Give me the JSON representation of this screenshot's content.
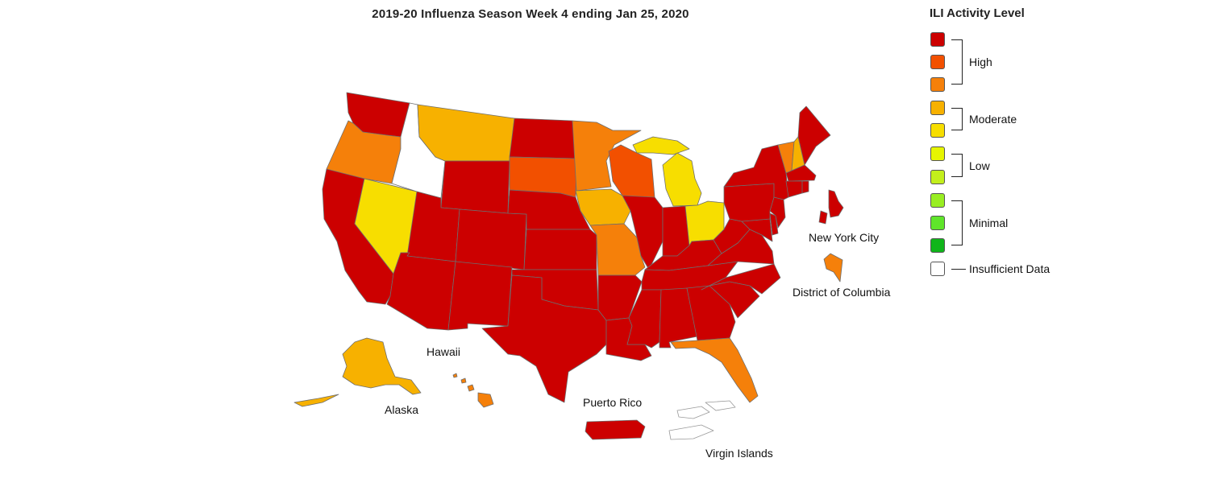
{
  "title": "2019-20 Influenza Season Week 4 ending Jan 25, 2020",
  "colors": {
    "high3": "#cc0000",
    "high2": "#f25000",
    "high1": "#f5800a",
    "moderate2": "#f7b100",
    "moderate1": "#f7de00",
    "low2": "#e6f500",
    "low1": "#c3ef1c",
    "minimal3": "#99ee22",
    "minimal2": "#5fe52a",
    "minimal1": "#10b51a",
    "insufficient": "#ffffff"
  },
  "legend": {
    "title": "ILI Activity Level",
    "groups": [
      {
        "label": "High",
        "levels": [
          "high3",
          "high2",
          "high1"
        ]
      },
      {
        "label": "Moderate",
        "levels": [
          "moderate2",
          "moderate1"
        ]
      },
      {
        "label": "Low",
        "levels": [
          "low2",
          "low1"
        ]
      },
      {
        "label": "Minimal",
        "levels": [
          "minimal3",
          "minimal2",
          "minimal1"
        ]
      },
      {
        "label": "Insufficient Data",
        "levels": [
          "insufficient"
        ]
      }
    ]
  },
  "labels": {
    "new_york_city": "New York City",
    "district_of_columbia": "District of Columbia",
    "hawaii": "Hawaii",
    "alaska": "Alaska",
    "puerto_rico": "Puerto Rico",
    "virgin_islands": "Virgin Islands"
  },
  "jurisdiction_levels": {
    "Washington": "high3",
    "Oregon": "high1",
    "California": "high3",
    "Nevada": "moderate1",
    "Idaho": "insufficient",
    "Montana": "moderate2",
    "Wyoming": "high3",
    "Utah": "high3",
    "Arizona": "high3",
    "Colorado": "high3",
    "New Mexico": "high3",
    "North Dakota": "high3",
    "South Dakota": "high2",
    "Nebraska": "high3",
    "Kansas": "high3",
    "Oklahoma": "high3",
    "Texas": "high3",
    "Minnesota": "high1",
    "Iowa": "moderate2",
    "Missouri": "high1",
    "Arkansas": "high3",
    "Louisiana": "high3",
    "Wisconsin": "high2",
    "Illinois": "high3",
    "Michigan": "moderate1",
    "Indiana": "high3",
    "Ohio": "moderate1",
    "Kentucky": "high3",
    "Tennessee": "high3",
    "Mississippi": "high3",
    "Alabama": "high3",
    "Georgia": "high3",
    "Florida": "high1",
    "South Carolina": "high3",
    "North Carolina": "high3",
    "Virginia": "high3",
    "West Virginia": "high3",
    "Maryland": "high3",
    "Delaware": "high3",
    "New Jersey": "high3",
    "Pennsylvania": "high3",
    "New York": "high3",
    "Connecticut": "high3",
    "Rhode Island": "high3",
    "Massachusetts": "high3",
    "Vermont": "high1",
    "New Hampshire": "moderate2",
    "Maine": "high3",
    "Alaska": "moderate2",
    "Hawaii": "high1",
    "New York City": "high3",
    "District of Columbia": "high1",
    "Puerto Rico": "high3",
    "Virgin Islands": "insufficient"
  }
}
